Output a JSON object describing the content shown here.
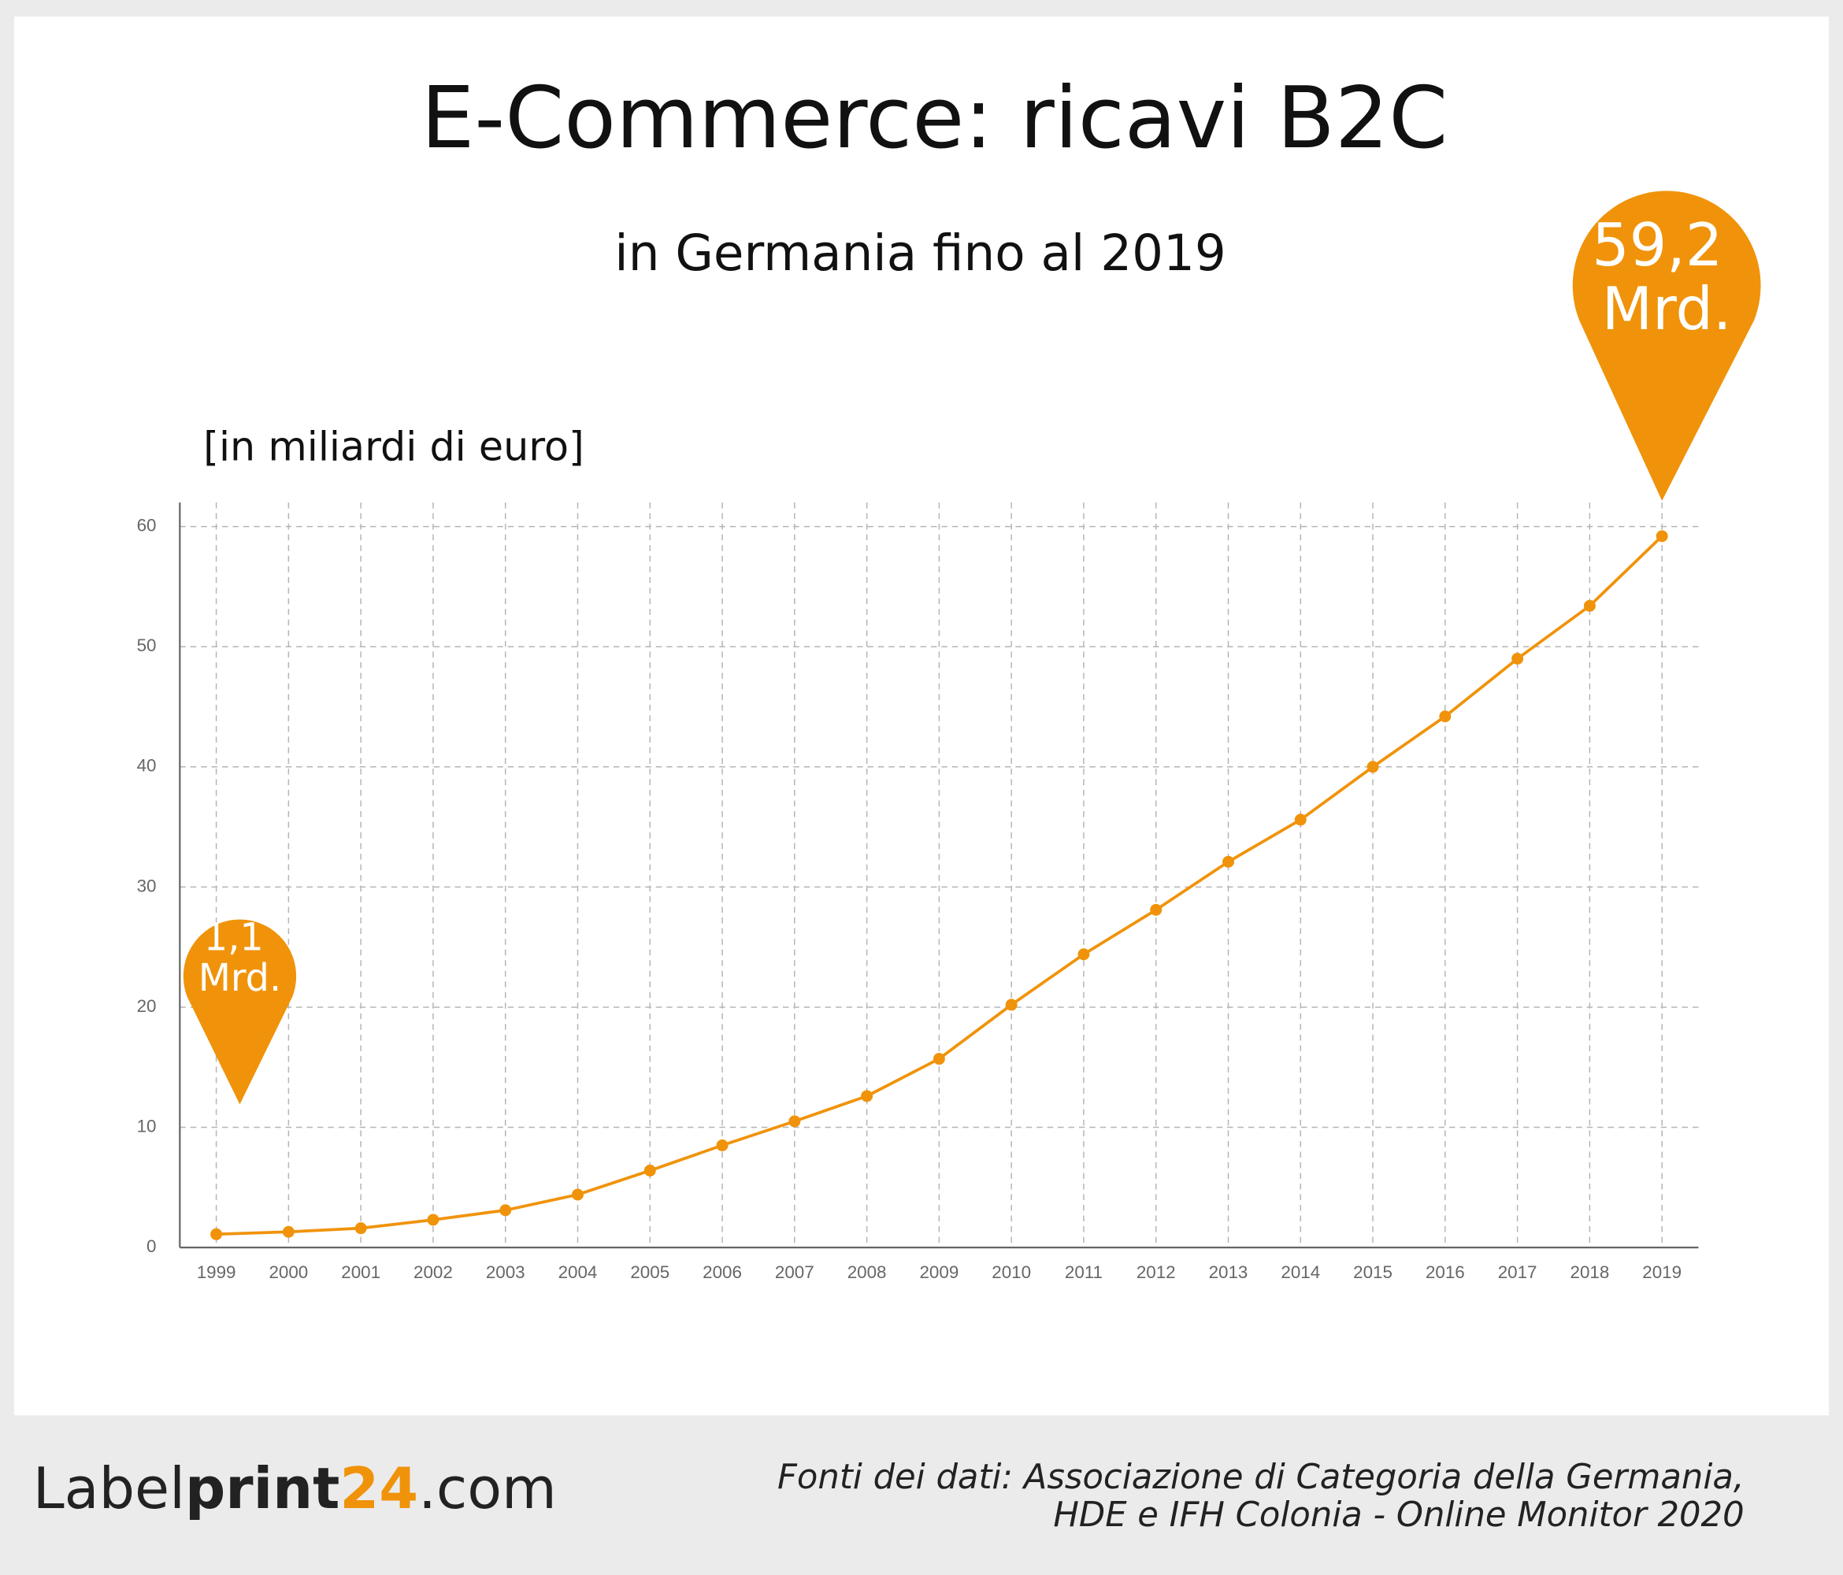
{
  "chart_data": {
    "type": "line",
    "title": "E-Commerce: ricavi B2C",
    "subtitle": "in Germania fino al 2019",
    "y_label": "[in miliardi di euro]",
    "categories": [
      "1999",
      "2000",
      "2001",
      "2002",
      "2003",
      "2004",
      "2005",
      "2006",
      "2007",
      "2008",
      "2009",
      "2010",
      "2011",
      "2012",
      "2013",
      "2014",
      "2015",
      "2016",
      "2017",
      "2018",
      "2019"
    ],
    "series": [
      {
        "name": "Ricavi B2C",
        "color": "#f0930a",
        "values": [
          1.1,
          1.3,
          1.6,
          2.3,
          3.1,
          4.4,
          6.4,
          8.5,
          10.5,
          12.6,
          15.7,
          20.2,
          24.4,
          28.1,
          32.1,
          35.6,
          40.0,
          44.2,
          49.0,
          53.4,
          59.2
        ],
        "value_labels": [
          "1,1 Mrd.",
          null,
          null,
          null,
          null,
          null,
          null,
          null,
          null,
          null,
          null,
          null,
          null,
          null,
          null,
          null,
          null,
          null,
          null,
          null,
          "59,2 Mrd."
        ]
      }
    ],
    "ylim": [
      0,
      62
    ],
    "yticks": [
      0,
      10,
      20,
      30,
      40,
      50,
      60
    ],
    "grid": true
  },
  "footer": {
    "logo": [
      "Label",
      "print",
      "24",
      ".com"
    ],
    "source": [
      "Fonti dei dati: Associazione di Categoria della Germania,",
      "HDE e IFH Colonia - Online Monitor 2020"
    ]
  }
}
